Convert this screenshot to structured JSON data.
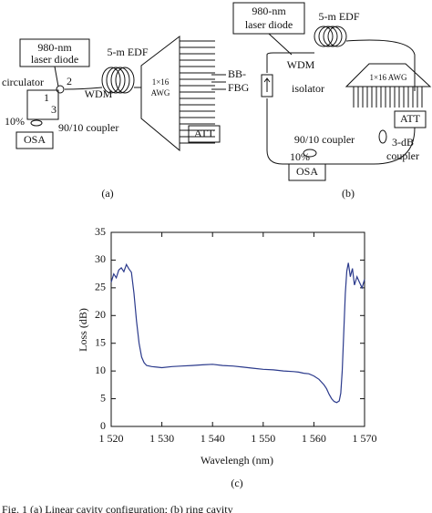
{
  "diagram_a": {
    "laser": [
      "980-nm",
      "laser diode"
    ],
    "edf": "5-m EDF",
    "circulator": "circulator",
    "port2": "2",
    "port1": "1",
    "port3": "3",
    "wdm": "WDM",
    "awg": [
      "1×16",
      "AWG"
    ],
    "fbg": [
      "BB-",
      "FBG"
    ],
    "att": "ATT",
    "tap": "10%",
    "coupler": "90/10 coupler",
    "osa": "OSA",
    "label": "(a)"
  },
  "diagram_b": {
    "laser": [
      "980-nm",
      "laser diode"
    ],
    "edf": "5-m EDF",
    "wdm": "WDM",
    "isolator": "isolator",
    "awg": "1×16 AWG",
    "att": "ATT",
    "coupler": "90/10 coupler",
    "coupler3db": [
      "3-dB",
      "coupler"
    ],
    "tap": "10%",
    "osa": "OSA",
    "label": "(b)"
  },
  "chart_data": {
    "type": "line",
    "xlabel": "Wavelengh (nm)",
    "ylabel": "Loss (dB)",
    "label": "(c)",
    "xlim": [
      1520,
      1570
    ],
    "ylim": [
      0,
      35
    ],
    "xticks": [
      {
        "value": 1520,
        "label": "1 520"
      },
      {
        "value": 1530,
        "label": "1 530"
      },
      {
        "value": 1540,
        "label": "1 540"
      },
      {
        "value": 1550,
        "label": "1 550"
      },
      {
        "value": 1560,
        "label": "1 560"
      },
      {
        "value": 1570,
        "label": "1 570"
      }
    ],
    "yticks": [
      0,
      5,
      10,
      15,
      20,
      25,
      30,
      35
    ],
    "series": [
      {
        "color": "#2b3a8c",
        "x": [
          1520,
          1520.5,
          1521,
          1521.5,
          1522,
          1522.5,
          1523,
          1523.5,
          1524,
          1524.5,
          1525,
          1525.5,
          1526,
          1526.5,
          1527,
          1528,
          1529,
          1530,
          1532,
          1534,
          1536,
          1538,
          1540,
          1542,
          1544,
          1546,
          1548,
          1550,
          1552,
          1554,
          1556,
          1557,
          1558,
          1559,
          1560,
          1561,
          1562,
          1562.5,
          1563,
          1563.5,
          1564,
          1564.5,
          1565,
          1565.3,
          1565.6,
          1565.9,
          1566.2,
          1566.5,
          1566.8,
          1567.2,
          1567.6,
          1568,
          1568.5,
          1569,
          1569.5,
          1570
        ],
        "values": [
          26,
          27.5,
          26.8,
          28.2,
          28.6,
          27.9,
          29.2,
          28.4,
          27.8,
          24,
          19,
          15,
          12.5,
          11.5,
          11,
          10.8,
          10.7,
          10.6,
          10.8,
          10.9,
          11.0,
          11.1,
          11.2,
          11.0,
          10.9,
          10.7,
          10.5,
          10.3,
          10.2,
          10.0,
          9.9,
          9.8,
          9.6,
          9.5,
          9.1,
          8.5,
          7.5,
          6.8,
          5.8,
          5.0,
          4.5,
          4.3,
          4.6,
          6,
          10,
          17,
          24,
          28,
          29.5,
          27,
          28.5,
          25.5,
          27,
          26,
          25,
          26.5
        ]
      }
    ]
  },
  "caption": "Fig. 1   (a)  Linear cavity configuration;  (b)  ring cavity"
}
